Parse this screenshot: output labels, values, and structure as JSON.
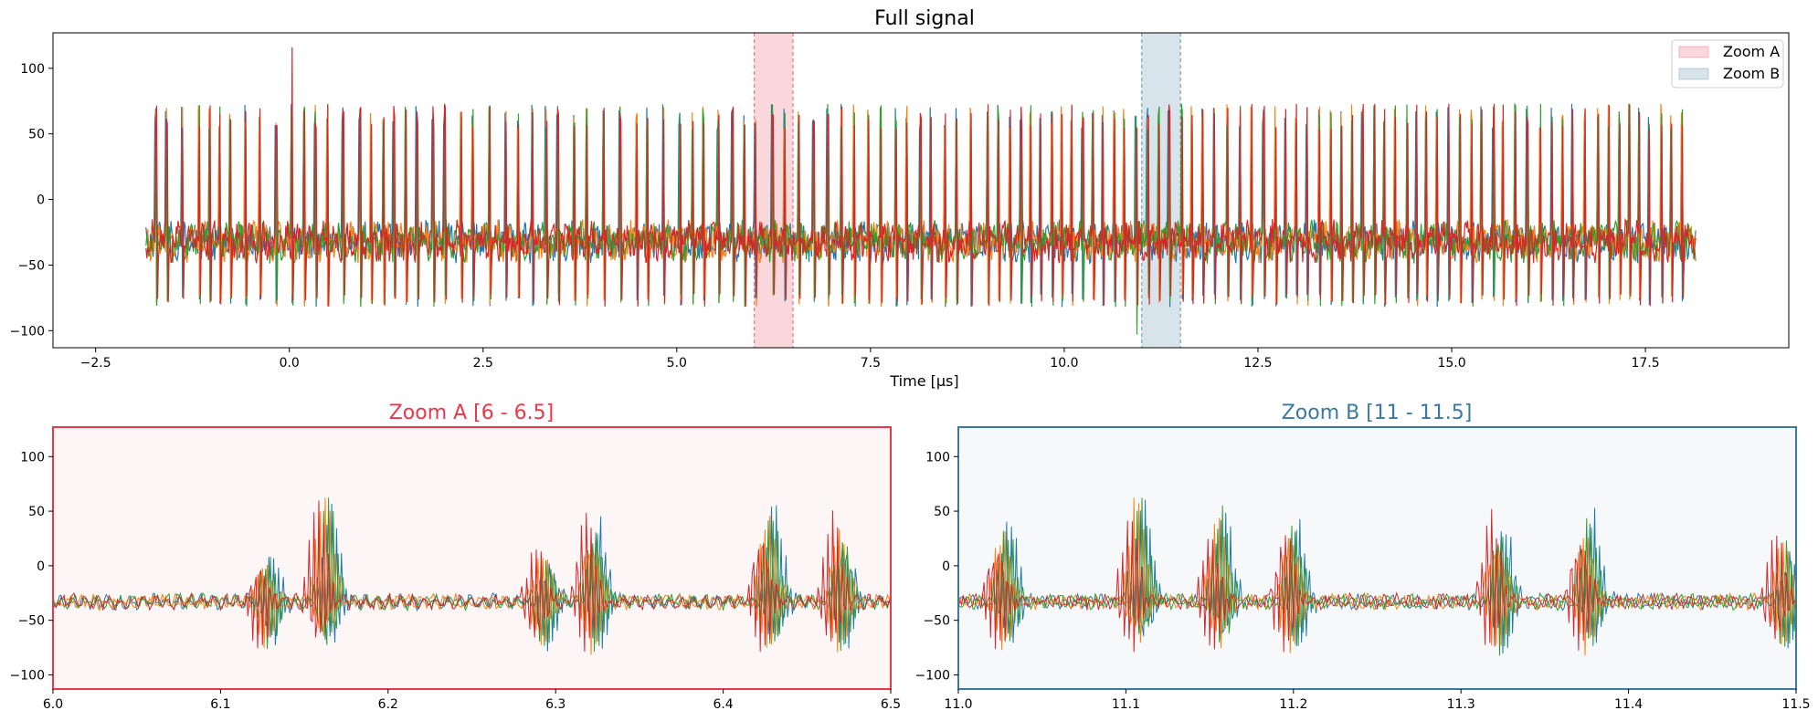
{
  "chart_data": [
    {
      "id": "full",
      "type": "line",
      "title": "Full signal",
      "xlabel": "Time [µs]",
      "ylabel": "",
      "xlim": [
        -3.05,
        19.35
      ],
      "ylim": [
        -113,
        127
      ],
      "xticks": [
        -2.5,
        0.0,
        2.5,
        5.0,
        7.5,
        10.0,
        12.5,
        15.0,
        17.5
      ],
      "xtick_labels": [
        "−2.5",
        "0.0",
        "2.5",
        "5.0",
        "7.5",
        "10.0",
        "12.5",
        "15.0",
        "17.5"
      ],
      "yticks": [
        100,
        50,
        0,
        -50,
        -100
      ],
      "ytick_labels": [
        "100",
        "50",
        "0",
        "−50",
        "−100"
      ],
      "grid": false,
      "legend_position": "top-right",
      "signal": {
        "series_colors": [
          "#1f77b4",
          "#ff7f0e",
          "#2ca02c",
          "#d62728"
        ],
        "x_range": [
          -1.85,
          18.15
        ],
        "baseline": -32,
        "spike_peak_typical": 65,
        "spike_trough_typical": -80,
        "max_peak": {
          "x": 0.02,
          "y": 116
        },
        "min_trough": {
          "x": 10.9,
          "y": -103
        }
      },
      "highlighted_regions": [
        {
          "label": "Zoom A",
          "x": [
            6.0,
            6.5
          ],
          "color": "#e8394b"
        },
        {
          "label": "Zoom B",
          "x": [
            11.0,
            11.5
          ],
          "color": "#3c78a0"
        }
      ]
    },
    {
      "id": "zoomA",
      "type": "line",
      "title": "Zoom A  [6 - 6.5]",
      "xlim": [
        6.0,
        6.5
      ],
      "ylim": [
        -113,
        127
      ],
      "xticks": [
        6.0,
        6.1,
        6.2,
        6.3,
        6.4,
        6.5
      ],
      "xtick_labels": [
        "6.0",
        "6.1",
        "6.2",
        "6.3",
        "6.4",
        "6.5"
      ],
      "yticks": [
        100,
        50,
        0,
        -50,
        -100
      ],
      "ytick_labels": [
        "100",
        "50",
        "0",
        "−50",
        "−100"
      ],
      "accent": "#e8394b",
      "background": "#fdf6f7",
      "series_colors": [
        "#1f77b4",
        "#ff7f0e",
        "#2ca02c",
        "#d62728"
      ],
      "baseline": -33,
      "bursts": [
        6.12,
        6.155,
        6.285,
        6.315,
        6.42,
        6.462
      ],
      "burst_peaks": [
        10,
        70,
        20,
        72,
        65,
        55
      ]
    },
    {
      "id": "zoomB",
      "type": "line",
      "title": "Zoom B  [11 - 11.5]",
      "xlim": [
        11.0,
        11.5
      ],
      "ylim": [
        -113,
        127
      ],
      "xticks": [
        11.0,
        11.1,
        11.2,
        11.3,
        11.4,
        11.5
      ],
      "xtick_labels": [
        "11.0",
        "11.1",
        "11.2",
        "11.3",
        "11.4",
        "11.5"
      ],
      "yticks": [
        100,
        50,
        0,
        -50,
        -100
      ],
      "ytick_labels": [
        "100",
        "50",
        "0",
        "−50",
        "−100"
      ],
      "accent": "#3c78a0",
      "background": "#f6f8fa",
      "series_colors": [
        "#1f77b4",
        "#ff7f0e",
        "#2ca02c",
        "#d62728"
      ],
      "baseline": -33,
      "bursts": [
        11.02,
        11.1,
        11.148,
        11.192,
        11.315,
        11.368,
        11.485
      ],
      "burst_peaks": [
        50,
        65,
        55,
        62,
        70,
        62,
        35
      ]
    }
  ],
  "legend": {
    "items": [
      {
        "label": "Zoom A",
        "color": "#e8394b"
      },
      {
        "label": "Zoom B",
        "color": "#3c78a0"
      }
    ]
  }
}
